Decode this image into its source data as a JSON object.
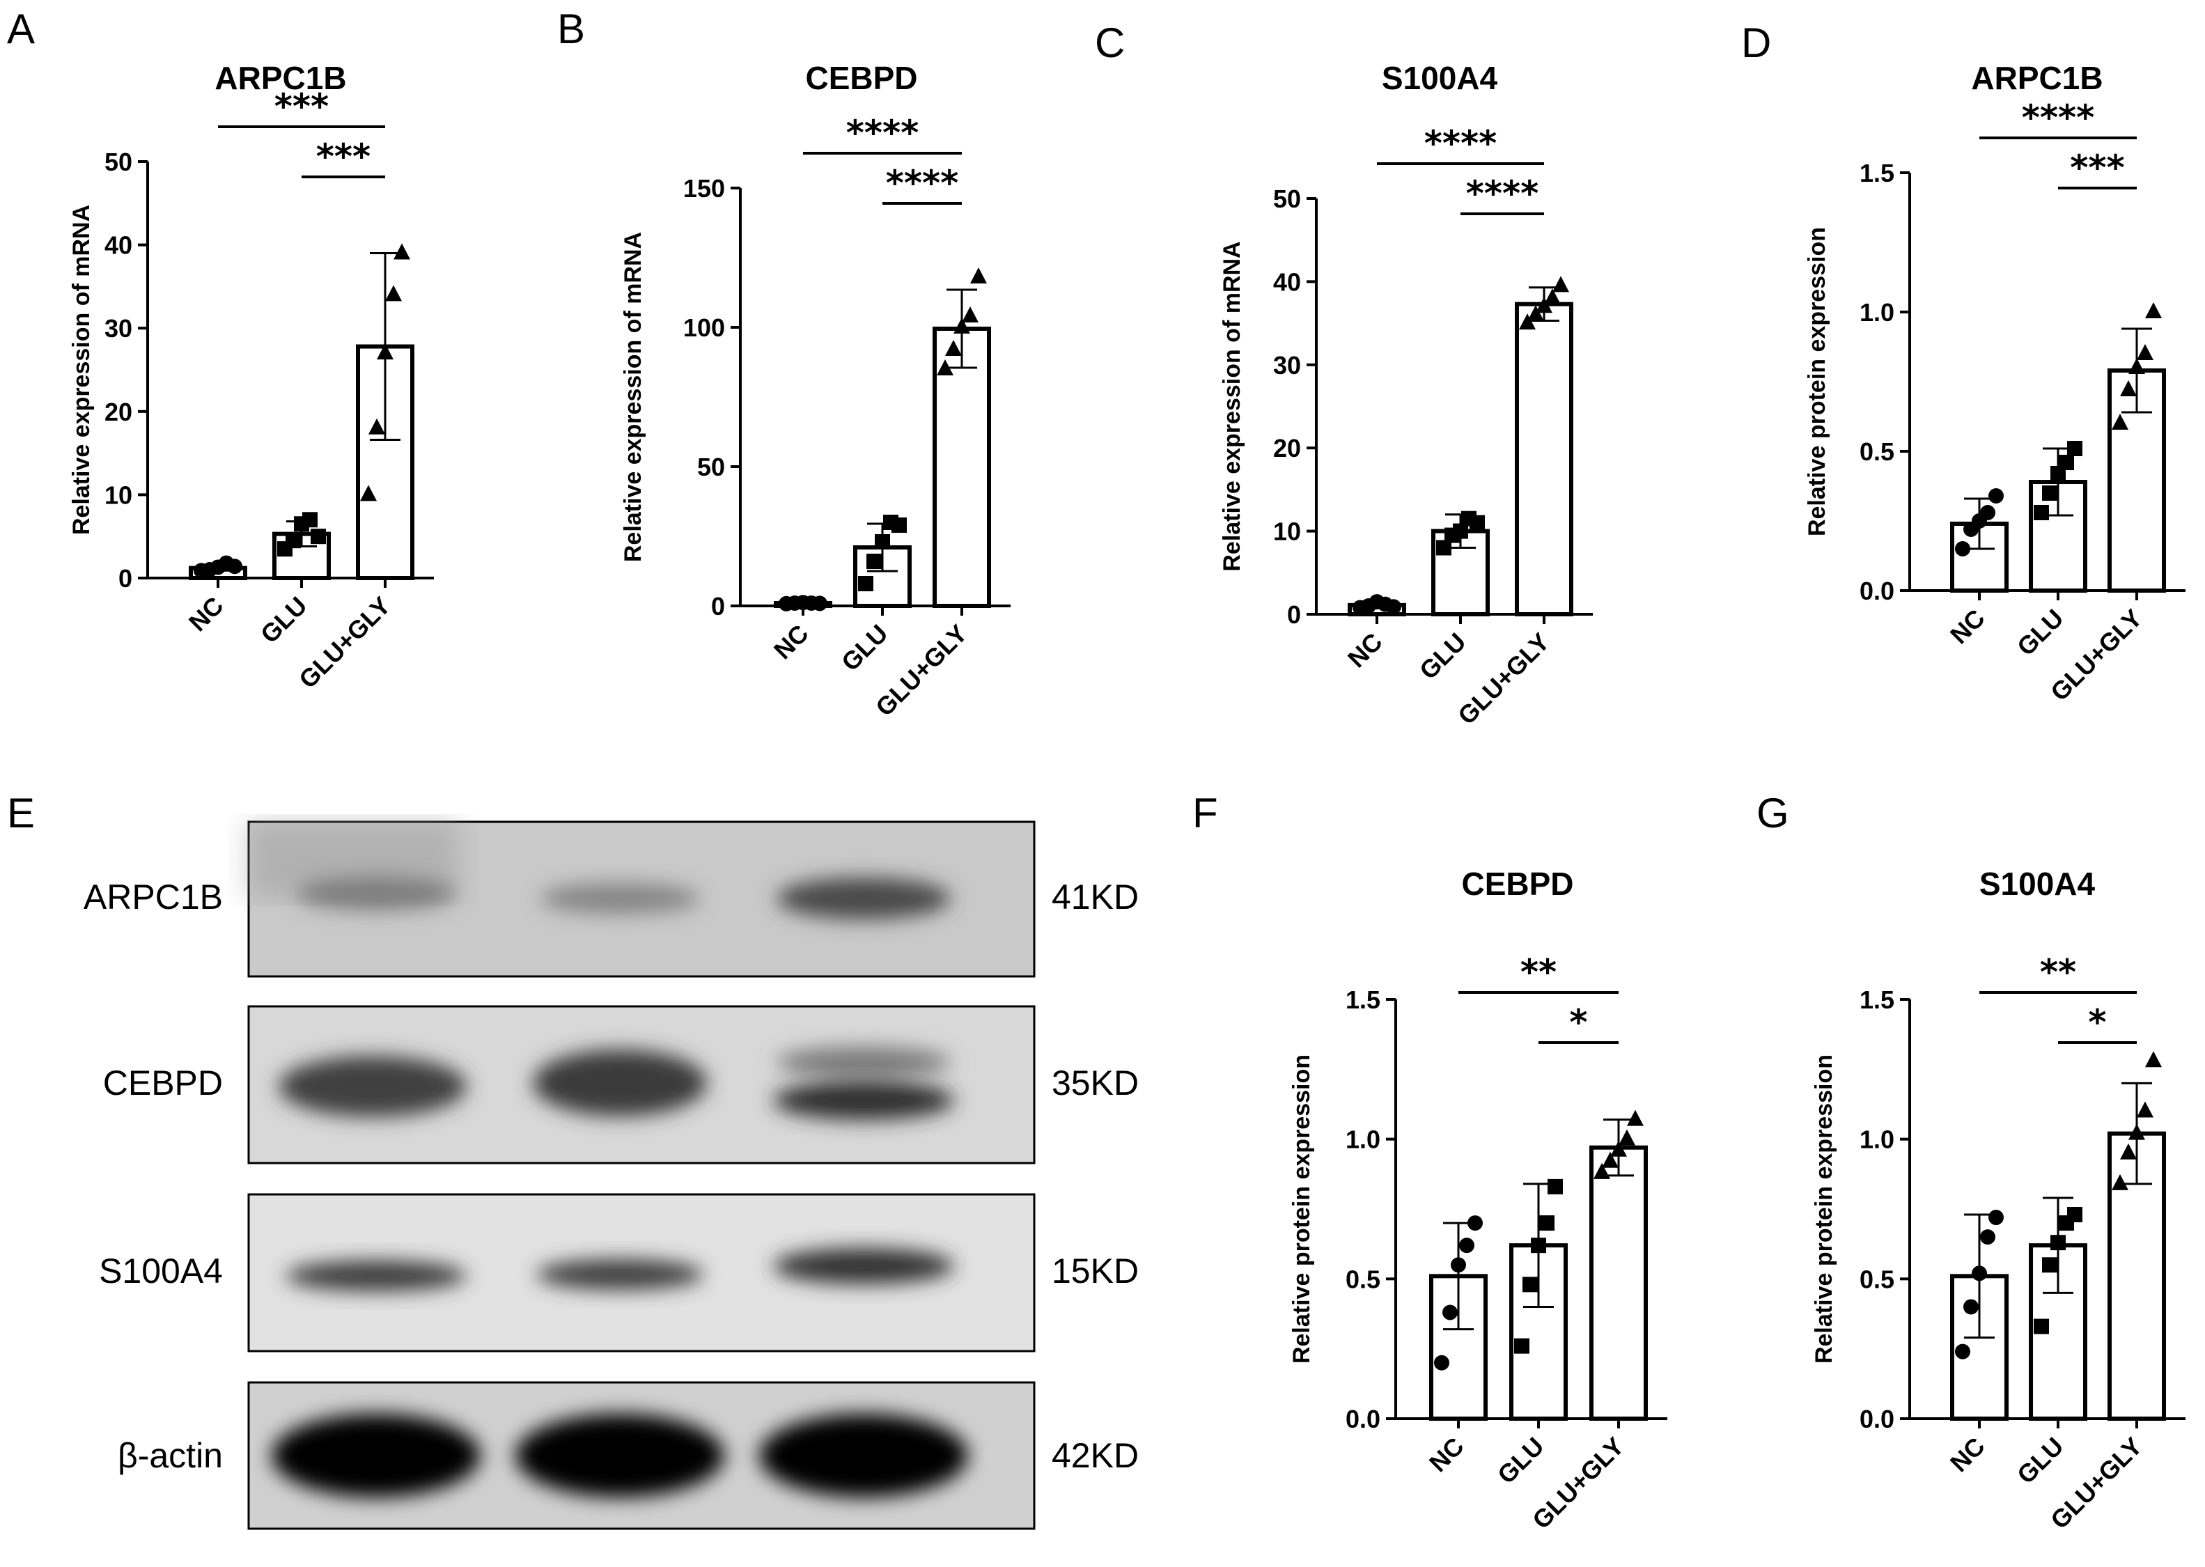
{
  "panel_labels": [
    "A",
    "B",
    "C",
    "D",
    "E",
    "F",
    "G"
  ],
  "blot": {
    "proteins": [
      "ARPC1B",
      "CEBPD",
      "S100A4",
      "β-actin"
    ],
    "sizes": [
      "41KD",
      "35KD",
      "15KD",
      "42KD"
    ]
  },
  "chart_data": [
    {
      "type": "bar",
      "title": "ARPC1B",
      "ylabel": "Relative expression of mRNA",
      "categories": [
        "NC",
        "GLU",
        "GLU+GLY"
      ],
      "ylim": [
        0,
        50
      ],
      "yticks": [
        0,
        10,
        20,
        30,
        40,
        50
      ],
      "values": [
        1.2,
        5.3,
        27.8
      ],
      "sd": [
        0.3,
        1.5,
        11.2
      ],
      "points": [
        [
          0.9,
          1.0,
          1.3,
          1.8,
          1.4
        ],
        [
          3.5,
          4.5,
          6.5,
          7.0,
          5.0
        ],
        [
          10,
          18,
          27,
          34,
          39
        ]
      ],
      "markers": [
        "circle",
        "square",
        "triangle"
      ],
      "significance": [
        {
          "from": 0,
          "to": 2,
          "label": "***"
        },
        {
          "from": 1,
          "to": 2,
          "label": "***"
        }
      ]
    },
    {
      "type": "bar",
      "title": "CEBPD",
      "ylabel": "Relative expression of mRNA",
      "categories": [
        "NC",
        "GLU",
        "GLU+GLY"
      ],
      "ylim": [
        0,
        150
      ],
      "yticks": [
        0,
        50,
        100,
        150
      ],
      "values": [
        1.0,
        21.0,
        99.5
      ],
      "sd": [
        0.2,
        8.5,
        14.0
      ],
      "points": [
        [
          0.8,
          1.0,
          1.2,
          1.0,
          0.9
        ],
        [
          8,
          16,
          23,
          30,
          29
        ],
        [
          85,
          92,
          100,
          104,
          118
        ]
      ],
      "markers": [
        "circle",
        "square",
        "triangle"
      ],
      "significance": [
        {
          "from": 0,
          "to": 2,
          "label": "****"
        },
        {
          "from": 1,
          "to": 2,
          "label": "****"
        }
      ]
    },
    {
      "type": "bar",
      "title": "S100A4",
      "ylabel": "Relative expression of mRNA",
      "categories": [
        "NC",
        "GLU",
        "GLU+GLY"
      ],
      "ylim": [
        0,
        50
      ],
      "yticks": [
        0,
        10,
        20,
        30,
        40,
        50
      ],
      "values": [
        1.1,
        10.0,
        37.3
      ],
      "sd": [
        0.3,
        2.0,
        2.0
      ],
      "points": [
        [
          0.8,
          1.0,
          1.5,
          1.2,
          0.9
        ],
        [
          8,
          9.5,
          10,
          11.5,
          11
        ],
        [
          35,
          36,
          37,
          38,
          39.5
        ]
      ],
      "markers": [
        "circle",
        "square",
        "triangle"
      ],
      "significance": [
        {
          "from": 0,
          "to": 2,
          "label": "****"
        },
        {
          "from": 1,
          "to": 2,
          "label": "****"
        }
      ]
    },
    {
      "type": "bar",
      "title": "ARPC1B",
      "ylabel": "Relative protein expression",
      "categories": [
        "NC",
        "GLU",
        "GLU+GLY"
      ],
      "ylim": [
        0,
        1.5
      ],
      "yticks": [
        "0.0",
        "0.5",
        "1.0",
        "1.5"
      ],
      "values": [
        0.24,
        0.39,
        0.79
      ],
      "sd": [
        0.09,
        0.12,
        0.15
      ],
      "points": [
        [
          0.15,
          0.22,
          0.25,
          0.28,
          0.34
        ],
        [
          0.28,
          0.35,
          0.42,
          0.46,
          0.51
        ],
        [
          0.6,
          0.72,
          0.8,
          0.85,
          1.0
        ]
      ],
      "markers": [
        "circle",
        "square",
        "triangle"
      ],
      "significance": [
        {
          "from": 0,
          "to": 2,
          "label": "****"
        },
        {
          "from": 1,
          "to": 2,
          "label": "***"
        }
      ]
    },
    {
      "type": "bar",
      "title": "CEBPD",
      "ylabel": "Relative protein expression",
      "categories": [
        "NC",
        "GLU",
        "GLU+GLY"
      ],
      "ylim": [
        0,
        1.5
      ],
      "yticks": [
        "0.0",
        "0.5",
        "1.0",
        "1.5"
      ],
      "values": [
        0.51,
        0.62,
        0.97
      ],
      "sd": [
        0.19,
        0.22,
        0.1
      ],
      "points": [
        [
          0.2,
          0.38,
          0.55,
          0.62,
          0.7
        ],
        [
          0.26,
          0.48,
          0.62,
          0.7,
          0.83
        ],
        [
          0.88,
          0.92,
          0.96,
          1.0,
          1.07
        ]
      ],
      "markers": [
        "circle",
        "square",
        "triangle"
      ],
      "significance": [
        {
          "from": 0,
          "to": 2,
          "label": "**"
        },
        {
          "from": 1,
          "to": 2,
          "label": "*"
        }
      ]
    },
    {
      "type": "bar",
      "title": "S100A4",
      "ylabel": "Relative protein expression",
      "categories": [
        "NC",
        "GLU",
        "GLU+GLY"
      ],
      "ylim": [
        0,
        1.5
      ],
      "yticks": [
        "0.0",
        "0.5",
        "1.0",
        "1.5"
      ],
      "values": [
        0.51,
        0.62,
        1.02
      ],
      "sd": [
        0.22,
        0.17,
        0.18
      ],
      "points": [
        [
          0.24,
          0.4,
          0.52,
          0.65,
          0.72
        ],
        [
          0.33,
          0.55,
          0.63,
          0.7,
          0.73
        ],
        [
          0.84,
          0.95,
          1.02,
          1.1,
          1.28
        ]
      ],
      "markers": [
        "circle",
        "square",
        "triangle"
      ],
      "significance": [
        {
          "from": 0,
          "to": 2,
          "label": "**"
        },
        {
          "from": 1,
          "to": 2,
          "label": "*"
        }
      ]
    }
  ]
}
